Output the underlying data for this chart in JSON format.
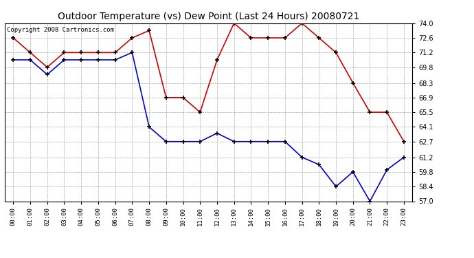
{
  "title": "Outdoor Temperature (vs) Dew Point (Last 24 Hours) 20080721",
  "copyright": "Copyright 2008 Cartronics.com",
  "x_labels": [
    "00:00",
    "01:00",
    "02:00",
    "03:00",
    "04:00",
    "05:00",
    "06:00",
    "07:00",
    "08:00",
    "09:00",
    "10:00",
    "11:00",
    "12:00",
    "13:00",
    "14:00",
    "15:00",
    "16:00",
    "17:00",
    "18:00",
    "19:00",
    "20:00",
    "21:00",
    "22:00",
    "23:00"
  ],
  "temp_data": [
    72.6,
    71.2,
    69.8,
    71.2,
    71.2,
    71.2,
    71.2,
    72.6,
    73.3,
    66.9,
    66.9,
    65.5,
    70.5,
    74.0,
    72.6,
    72.6,
    72.6,
    74.0,
    72.6,
    71.2,
    68.3,
    65.5,
    65.5,
    62.7
  ],
  "dew_data": [
    70.5,
    70.5,
    69.1,
    70.5,
    70.5,
    70.5,
    70.5,
    71.2,
    64.1,
    62.7,
    62.7,
    62.7,
    63.5,
    62.7,
    62.7,
    62.7,
    62.7,
    61.2,
    60.5,
    58.4,
    59.8,
    57.0,
    60.0,
    61.2
  ],
  "temp_color": "#cc0000",
  "dew_color": "#0000cc",
  "ylim": [
    57.0,
    74.0
  ],
  "yticks": [
    57.0,
    58.4,
    59.8,
    61.2,
    62.7,
    64.1,
    65.5,
    66.9,
    68.3,
    69.8,
    71.2,
    72.6,
    74.0
  ],
  "bg_color": "#ffffff",
  "grid_color": "#aaaaaa",
  "title_fontsize": 10,
  "copyright_fontsize": 6.5,
  "marker": "+",
  "marker_color": "#000000",
  "marker_size": 5,
  "line_width": 1.2
}
